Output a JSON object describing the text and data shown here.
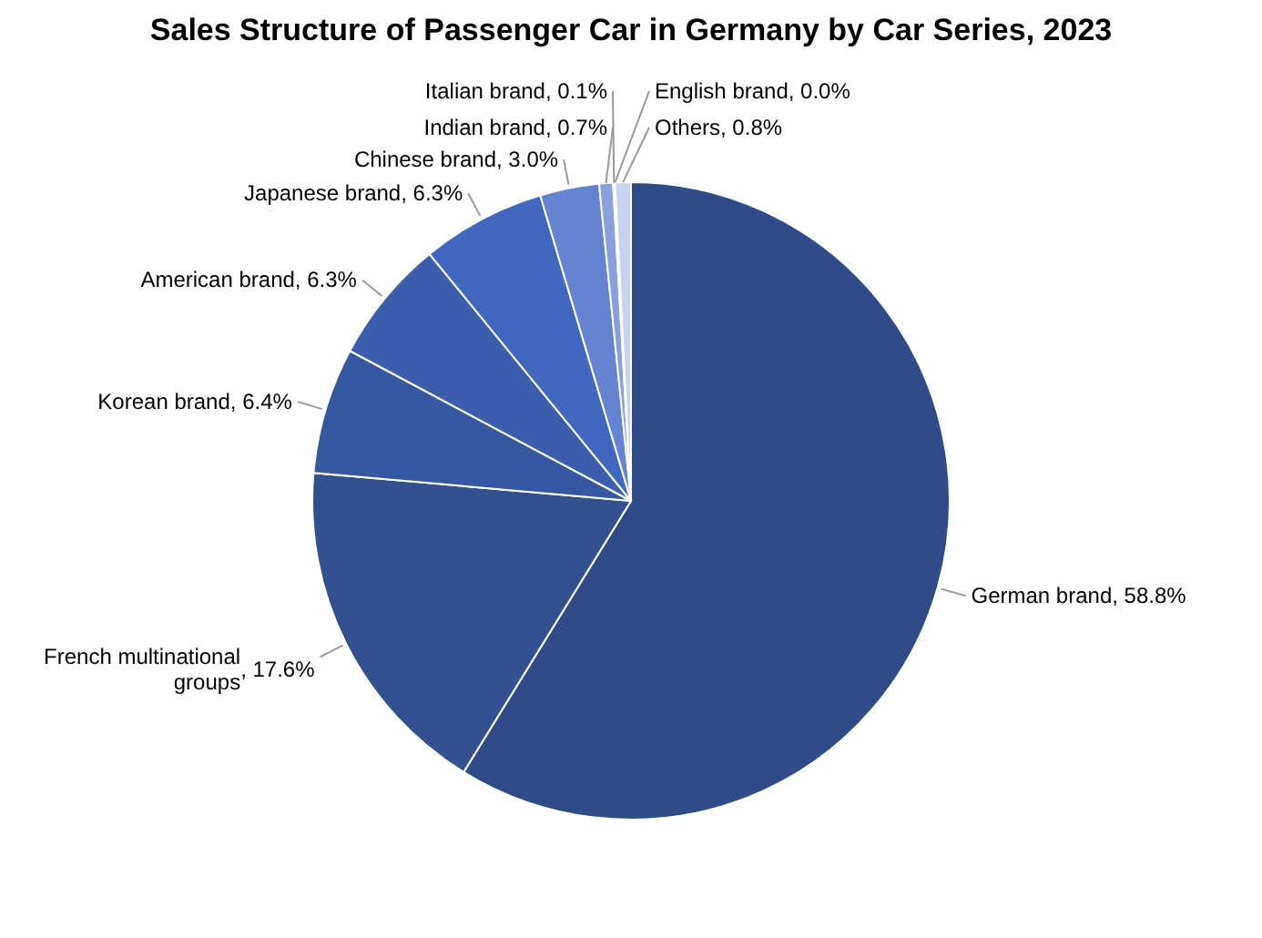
{
  "chart_data": {
    "type": "pie",
    "title": "Sales Structure of Passenger Car in Germany by Car Series, 2023",
    "categories": [
      "German brand",
      "French multinational groups",
      "Korean brand",
      "American brand",
      "Japanese brand",
      "Chinese brand",
      "Indian brand",
      "Italian brand",
      "English brand",
      "Others"
    ],
    "values": [
      58.8,
      17.6,
      6.4,
      6.3,
      6.3,
      3.0,
      0.7,
      0.1,
      0.0,
      0.8
    ],
    "colors": [
      "#2f4b88",
      "#31528f",
      "#3559a1",
      "#3a60ad",
      "#4168bf",
      "#6483d0",
      "#8aa0dc",
      "#a8b8e4",
      "#bfcaea",
      "#c9d3ef"
    ],
    "value_labels": [
      ", 58.8%",
      ", 17.6%",
      ", 6.4%",
      ", 6.3%",
      ", 6.3%",
      ", 3.0%",
      ", 0.7%",
      ", 0.1%",
      ", 0.0%",
      ", 0.8%"
    ]
  }
}
